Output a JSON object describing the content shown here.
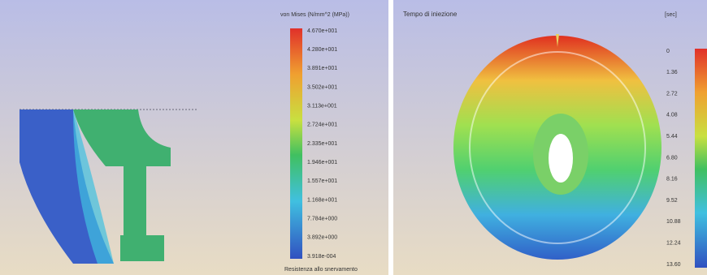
{
  "left_panel": {
    "legend_title": "von Mises (N/mm^2 (MPa))",
    "legend_labels": [
      "4.670e+001",
      "4.280e+001",
      "3.891e+001",
      "3.502e+001",
      "3.113e+001",
      "2.724e+001",
      "2.335e+001",
      "1.946e+001",
      "1.557e+001",
      "1.168e+001",
      "7.784e+000",
      "3.892e+000",
      "3.918e-004"
    ],
    "footer": "Resistenza allo snervamento"
  },
  "right_panel": {
    "title": "Tempo di iniezione",
    "unit": "[sec]",
    "legend_labels": [
      "0",
      "1.36",
      "2.72",
      "4.08",
      "5.44",
      "6.80",
      "8.16",
      "9.52",
      "10.88",
      "12.24",
      "13.60"
    ]
  }
}
